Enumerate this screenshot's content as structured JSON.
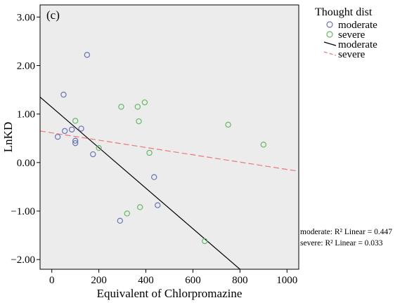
{
  "chart_data": {
    "type": "scatter",
    "panel_label": "(c)",
    "xlabel": "Equivalent of Chlorpromazine",
    "ylabel": "LnKD",
    "xlim": [
      -50,
      1050
    ],
    "ylim": [
      -2.2,
      3.25
    ],
    "x_ticks": [
      0,
      200,
      400,
      600,
      800,
      1000
    ],
    "x_tick_labels": [
      "0",
      "200",
      "400",
      "600",
      "800",
      "1000"
    ],
    "y_ticks": [
      -2,
      -1,
      0,
      1,
      2,
      3
    ],
    "y_tick_labels": [
      "−2.00",
      "−1.00",
      "0.00",
      "1.00",
      "2.00",
      "3.00"
    ],
    "grid": false,
    "legend": {
      "title": "Thought dist",
      "placement": "outside-right",
      "entries": [
        {
          "label": "moderate",
          "kind": "marker",
          "color": "#6a73b8"
        },
        {
          "label": "severe",
          "kind": "marker",
          "color": "#66b866"
        },
        {
          "label": "moderate",
          "kind": "line",
          "color": "#000000"
        },
        {
          "label": "severe",
          "kind": "dashed-line",
          "color": "#ee7777"
        }
      ]
    },
    "series": [
      {
        "name": "moderate",
        "color": "#6a73b8",
        "points": [
          [
            25,
            0.53
          ],
          [
            50,
            1.4
          ],
          [
            55,
            0.65
          ],
          [
            85,
            0.68
          ],
          [
            100,
            0.45
          ],
          [
            100,
            0.4
          ],
          [
            125,
            0.7
          ],
          [
            150,
            2.22
          ],
          [
            175,
            0.17
          ],
          [
            290,
            -1.2
          ],
          [
            435,
            -0.3
          ],
          [
            450,
            -0.88
          ]
        ]
      },
      {
        "name": "severe",
        "color": "#66b866",
        "points": [
          [
            100,
            0.86
          ],
          [
            200,
            0.3
          ],
          [
            295,
            1.15
          ],
          [
            320,
            -1.05
          ],
          [
            365,
            1.15
          ],
          [
            370,
            0.85
          ],
          [
            375,
            -0.92
          ],
          [
            395,
            1.24
          ],
          [
            415,
            0.2
          ],
          [
            650,
            -1.62
          ],
          [
            750,
            0.78
          ],
          [
            900,
            0.37
          ]
        ]
      }
    ],
    "fit_lines": [
      {
        "name": "moderate",
        "style": "solid",
        "color": "#000000",
        "from": [
          -50,
          1.35
        ],
        "to": [
          800,
          -2.2
        ]
      },
      {
        "name": "severe",
        "style": "dashed",
        "color": "#ee7777",
        "from": [
          -50,
          0.65
        ],
        "to": [
          1050,
          -0.18
        ]
      }
    ],
    "annotations": [
      "moderate: R² Linear = 0.447",
      "severe: R² Linear = 0.033"
    ]
  }
}
